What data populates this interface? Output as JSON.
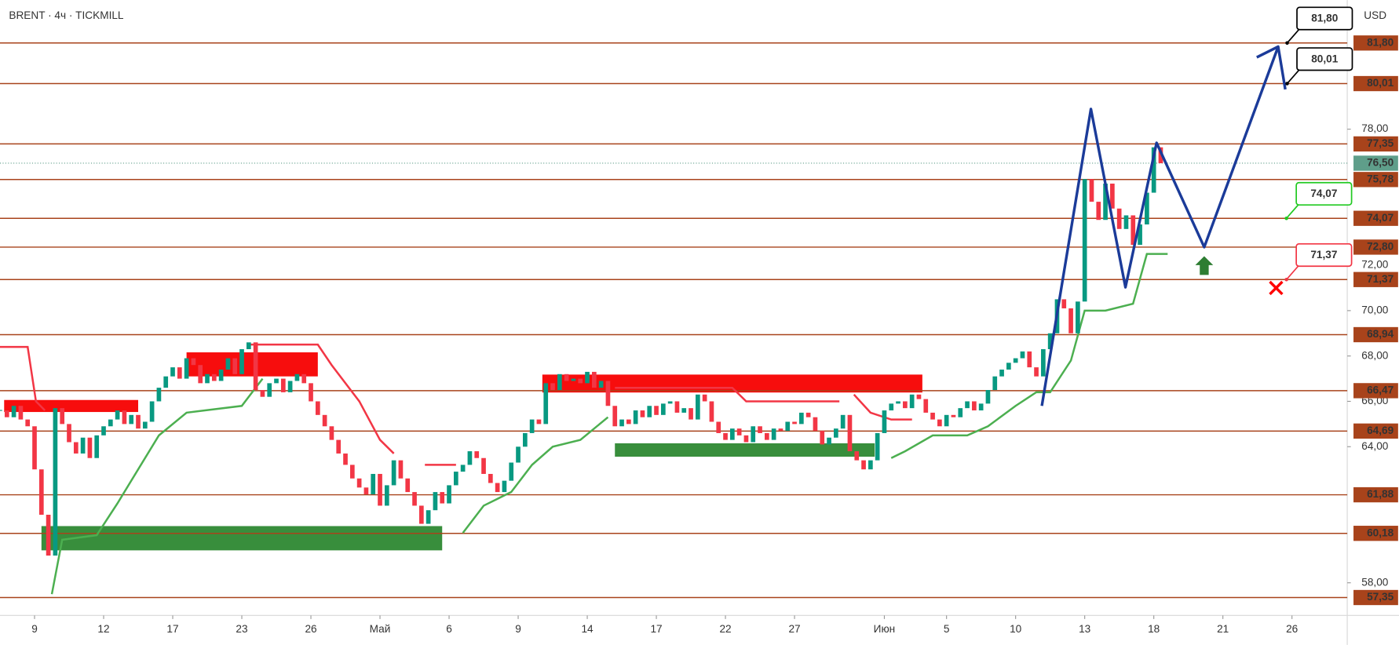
{
  "chart_data": {
    "type": "candlestick",
    "title": "BRENT · 4ч · TICKMILL",
    "y_axis_label": "USD",
    "up_color": "#089981",
    "down_color": "#f23645",
    "values": [
      65.6,
      65.3,
      65.8,
      65.2,
      64.9,
      63.0,
      61.0,
      59.2,
      65.7,
      65.0,
      64.2,
      63.7,
      64.4,
      63.5,
      64.5,
      64.9,
      65.2,
      65.6,
      65.0,
      65.4,
      64.8,
      65.1,
      66.0,
      66.6,
      67.1,
      67.5,
      67.0,
      67.9,
      67.6,
      66.8,
      67.2,
      66.9,
      67.4,
      67.9,
      67.2,
      68.3,
      68.6,
      66.5,
      66.2,
      66.8,
      67.0,
      66.4,
      66.9,
      67.2,
      66.8,
      66.0,
      65.4,
      64.9,
      64.3,
      63.7,
      63.2,
      62.6,
      62.2,
      61.9,
      62.8,
      61.4,
      62.3,
      63.4,
      62.6,
      62.0,
      61.4,
      60.6,
      61.2,
      62.0,
      61.5,
      62.3,
      62.9,
      63.2,
      63.8,
      63.5,
      62.8,
      62.4,
      62.0,
      62.5,
      63.3,
      64.0,
      64.6,
      65.2,
      65.0,
      66.8,
      66.5,
      67.2,
      66.9,
      67.0,
      66.8,
      67.3,
      66.6,
      66.9,
      65.8,
      64.9,
      65.2,
      65.0,
      65.6,
      65.3,
      65.8,
      65.4,
      65.9,
      66.0,
      65.5,
      65.7,
      65.2,
      66.3,
      66.0,
      65.1,
      64.6,
      64.3,
      64.8,
      64.5,
      64.2,
      64.9,
      64.6,
      64.3,
      64.8,
      64.7,
      65.1,
      65.0,
      65.5,
      65.3,
      64.7,
      64.1,
      64.4,
      64.8,
      65.4,
      63.8,
      63.4,
      63.0,
      63.4,
      64.6,
      65.6,
      65.9,
      66.0,
      65.7,
      66.3,
      66.1,
      65.5,
      65.2,
      64.9,
      65.4,
      65.3,
      65.7,
      66.0,
      65.6,
      65.9,
      66.5,
      67.1,
      67.4,
      67.7,
      67.9,
      68.2,
      67.5,
      67.1,
      68.3,
      69.0,
      70.5,
      70.1,
      69.0,
      70.4,
      75.8,
      74.8,
      74.0,
      75.6,
      74.5,
      73.6,
      74.2,
      72.9,
      73.8,
      75.2,
      77.2,
      76.5
    ],
    "xlim": [
      0,
      195
    ],
    "ylim": [
      56.56,
      83.69
    ],
    "xticks": [
      {
        "value": 5,
        "label": "9"
      },
      {
        "value": 15,
        "label": "12"
      },
      {
        "value": 25,
        "label": "17"
      },
      {
        "value": 35,
        "label": "23"
      },
      {
        "value": 45,
        "label": "26"
      },
      {
        "value": 55,
        "label": "Май"
      },
      {
        "value": 65,
        "label": "6"
      },
      {
        "value": 75,
        "label": "9"
      },
      {
        "value": 85,
        "label": "14"
      },
      {
        "value": 95,
        "label": "17"
      },
      {
        "value": 105,
        "label": "22"
      },
      {
        "value": 115,
        "label": "27"
      },
      {
        "value": 128,
        "label": "Июн"
      },
      {
        "value": 137,
        "label": "5"
      },
      {
        "value": 147,
        "label": "10"
      },
      {
        "value": 157,
        "label": "13"
      },
      {
        "value": 167,
        "label": "18"
      },
      {
        "value": 177,
        "label": "21"
      },
      {
        "value": 187,
        "label": "26"
      }
    ],
    "yticks": [
      {
        "value": 58,
        "label": "58,00"
      },
      {
        "value": 64,
        "label": "64,00"
      },
      {
        "value": 66,
        "label": "66,00"
      },
      {
        "value": 68,
        "label": "68,00"
      },
      {
        "value": 70,
        "label": "70,00"
      },
      {
        "value": 72,
        "label": "72,00"
      },
      {
        "value": 78,
        "label": "78,00"
      }
    ],
    "level_color": "#a8431b",
    "levels": [
      {
        "value": 81.8,
        "label": "81,80"
      },
      {
        "value": 80.01,
        "label": "80,01"
      },
      {
        "value": 77.35,
        "label": "77,35"
      },
      {
        "value": 75.78,
        "label": "75,78"
      },
      {
        "value": 74.07,
        "label": "74,07"
      },
      {
        "value": 72.8,
        "label": "72,80"
      },
      {
        "value": 71.37,
        "label": "71,37"
      },
      {
        "value": 68.94,
        "label": "68,94"
      },
      {
        "value": 66.47,
        "label": "66,47"
      },
      {
        "value": 64.69,
        "label": "64,69"
      },
      {
        "value": 61.88,
        "label": "61,88"
      },
      {
        "value": 60.18,
        "label": "60,18"
      },
      {
        "value": 57.35,
        "label": "57,35"
      }
    ],
    "last_price": {
      "value": 76.5,
      "label": "76,50",
      "color": "#5f9e8a"
    },
    "zones": [
      {
        "x": [
          0.6,
          20
        ],
        "y": [
          65.53,
          66.06
        ],
        "color": "#f70d0d"
      },
      {
        "x": [
          27,
          46
        ],
        "y": [
          67.1,
          68.16
        ],
        "color": "#f70d0d"
      },
      {
        "x": [
          78.5,
          133.5
        ],
        "y": [
          66.39,
          67.18
        ],
        "color": "#f70d0d"
      },
      {
        "x": [
          6,
          64
        ],
        "y": [
          59.43,
          60.5
        ],
        "color": "#388e3c"
      },
      {
        "x": [
          89,
          126.6
        ],
        "y": [
          63.56,
          64.15
        ],
        "color": "#388e3c"
      }
    ],
    "lines": [
      {
        "color": "#4caf50",
        "x": [
          7.5,
          9,
          14,
          17,
          19,
          23,
          27,
          35,
          38
        ],
        "values": [
          57.5,
          59.9,
          60.1,
          61.5,
          62.5,
          64.5,
          65.5,
          65.8,
          67.0
        ]
      },
      {
        "color": "#4caf50",
        "x": [
          67,
          70,
          74,
          77,
          80,
          84,
          88
        ],
        "values": [
          60.2,
          61.4,
          62.0,
          63.2,
          64.0,
          64.3,
          65.3
        ]
      },
      {
        "color": "#4caf50",
        "x": [
          129,
          131,
          135,
          140,
          143,
          147,
          150,
          152,
          155,
          157,
          160,
          164,
          166,
          169
        ],
        "values": [
          63.5,
          63.8,
          64.5,
          64.5,
          64.9,
          65.8,
          66.4,
          66.4,
          67.8,
          70.0,
          70.0,
          70.3,
          72.5,
          72.5
        ]
      },
      {
        "color": "#f23645",
        "x": [
          0,
          4,
          5.2,
          6.5
        ],
        "values": [
          68.4,
          68.4,
          66.0,
          65.6
        ]
      },
      {
        "color": "#f23645",
        "x": [
          36,
          46,
          48,
          52,
          55,
          57
        ],
        "values": [
          68.5,
          68.5,
          67.6,
          66.0,
          64.3,
          63.7
        ]
      },
      {
        "color": "#f23645",
        "x": [
          61.5,
          66
        ],
        "values": [
          63.2,
          63.2
        ]
      },
      {
        "color": "#f23645",
        "x": [
          89,
          106,
          108,
          121.5
        ],
        "values": [
          66.6,
          66.6,
          66.0,
          66.0
        ]
      },
      {
        "color": "#f23645",
        "x": [
          123.6,
          126,
          129,
          132
        ],
        "values": [
          66.3,
          65.5,
          65.2,
          65.2
        ]
      }
    ],
    "forecast": {
      "color": "#1b3b99",
      "x": [
        150.8,
        157.9,
        162.9,
        167.4,
        174.3,
        185
      ],
      "values": [
        65.8,
        78.89,
        71.03,
        77.4,
        72.8,
        81.64
      ]
    },
    "annotations": [
      {
        "text": "81,80",
        "x": 186.3,
        "y": 81.8,
        "color": "#000000"
      },
      {
        "text": "80,01",
        "x": 186.3,
        "y": 80.01,
        "color": "#000000"
      },
      {
        "text": "74,07",
        "x": 186.2,
        "y": 74.07,
        "color": "#22c922"
      },
      {
        "text": "71,37",
        "x": 186.2,
        "y": 71.37,
        "color": "#f23645"
      }
    ],
    "markers": [
      {
        "shape": "arrow-up",
        "x": 174.3,
        "y": 72.4,
        "color": "#2e7d32"
      },
      {
        "shape": "cross",
        "x": 184.7,
        "y": 71.0,
        "color": "#ff0000"
      }
    ]
  }
}
